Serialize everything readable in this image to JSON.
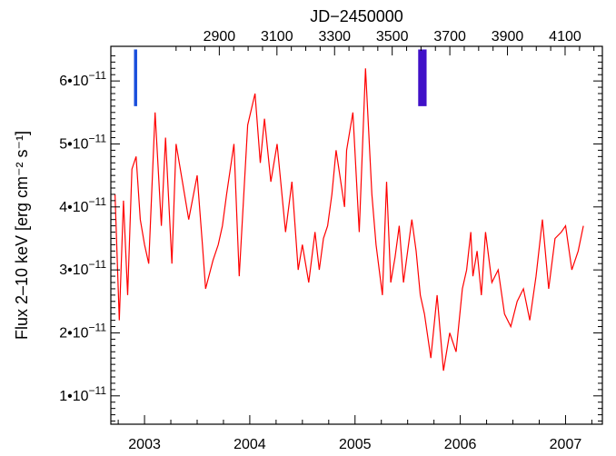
{
  "chart_data": {
    "type": "line",
    "title": "",
    "xlabel": "",
    "ylabel": "Flux 2–10 keV [erg cm⁻² s⁻¹]",
    "top_axis_label": "JD−2450000",
    "xlim": [
      2000.0,
      2008.0
    ],
    "ylim": [
      5.5e-12,
      6.55e-11
    ],
    "grid": false,
    "legend": "none",
    "x_ticks": [
      2003,
      2004,
      2005,
      2006,
      2007
    ],
    "x_tick_labels": [
      "2003",
      "2004",
      "2005",
      "2006",
      "2007"
    ],
    "top_ticks": [
      2900,
      3100,
      3300,
      3500,
      3700,
      3900,
      4100
    ],
    "top_tick_labels": [
      "2900",
      "3100",
      "3300",
      "3500",
      "3700",
      "3900",
      "4100"
    ],
    "y_ticks": [
      1e-11,
      2e-11,
      3e-11,
      4e-11,
      5e-11,
      6e-11
    ],
    "y_tick_labels": [
      {
        "mant": "1•",
        "base": "10",
        "exp": "−11"
      },
      {
        "mant": "2•",
        "base": "10",
        "exp": "−11"
      },
      {
        "mant": "3•",
        "base": "10",
        "exp": "−11"
      },
      {
        "mant": "4•",
        "base": "10",
        "exp": "−11"
      },
      {
        "mant": "5•",
        "base": "10",
        "exp": "−11"
      },
      {
        "mant": "6•",
        "base": "10",
        "exp": "−11"
      }
    ],
    "series": [
      {
        "color": "#ff0000",
        "x": [
          2002.72,
          2002.76,
          2002.8,
          2002.84,
          2002.88,
          2002.92,
          2002.96,
          2003.0,
          2003.04,
          2003.1,
          2003.16,
          2003.2,
          2003.26,
          2003.3,
          2003.36,
          2003.42,
          2003.5,
          2003.55,
          2003.58,
          2003.65,
          2003.7,
          2003.74,
          2003.78,
          2003.85,
          2003.9,
          2003.98,
          2004.05,
          2004.1,
          2004.14,
          2004.2,
          2004.26,
          2004.34,
          2004.4,
          2004.46,
          2004.5,
          2004.56,
          2004.62,
          2004.66,
          2004.7,
          2004.74,
          2004.78,
          2004.82,
          2004.9,
          2004.92,
          2004.98,
          2005.04,
          2005.1,
          2005.16,
          2005.2,
          2005.26,
          2005.3,
          2005.34,
          2005.38,
          2005.42,
          2005.46,
          2005.5,
          2005.54,
          2005.58,
          2005.62,
          2005.66,
          2005.72,
          2005.78,
          2005.84,
          2005.9,
          2005.96,
          2006.02,
          2006.06,
          2006.1,
          2006.12,
          2006.16,
          2006.2,
          2006.24,
          2006.3,
          2006.36,
          2006.42,
          2006.48,
          2006.54,
          2006.6,
          2006.66,
          2006.72,
          2006.78,
          2006.84,
          2006.9,
          2006.96,
          2007.0,
          2007.06,
          2007.12,
          2007.17
        ],
        "y": [
          4.2e-11,
          2.2e-11,
          4.1e-11,
          2.6e-11,
          4.6e-11,
          4.8e-11,
          3.8e-11,
          3.4e-11,
          3.1e-11,
          5.5e-11,
          3.7e-11,
          5.1e-11,
          3.1e-11,
          5e-11,
          4.4e-11,
          3.8e-11,
          4.5e-11,
          3.4e-11,
          2.7e-11,
          3.15e-11,
          3.4e-11,
          3.7e-11,
          4.2e-11,
          5e-11,
          2.9e-11,
          5.3e-11,
          5.8e-11,
          4.7e-11,
          5.4e-11,
          4.4e-11,
          5e-11,
          3.6e-11,
          4.4e-11,
          3e-11,
          3.4e-11,
          2.8e-11,
          3.6e-11,
          3e-11,
          3.5e-11,
          3.7e-11,
          4.2e-11,
          4.9e-11,
          4e-11,
          4.9e-11,
          5.5e-11,
          3.6e-11,
          6.2e-11,
          4.2e-11,
          3.4e-11,
          2.6e-11,
          4.4e-11,
          2.8e-11,
          3.2e-11,
          3.7e-11,
          2.8e-11,
          3.3e-11,
          3.8e-11,
          3.3e-11,
          2.6e-11,
          2.3e-11,
          1.6e-11,
          2.6e-11,
          1.4e-11,
          2e-11,
          1.7e-11,
          2.7e-11,
          3e-11,
          3.6e-11,
          2.9e-11,
          3.3e-11,
          2.6e-11,
          3.6e-11,
          2.8e-11,
          3e-11,
          2.3e-11,
          2.1e-11,
          2.5e-11,
          2.7e-11,
          2.2e-11,
          2.9e-11,
          3.8e-11,
          2.7e-11,
          3.5e-11,
          3.6e-11,
          3.7e-11,
          3e-11,
          3.3e-11,
          3.7e-11
        ]
      }
    ],
    "markers": [
      {
        "type": "bar",
        "x_start": 2002.9,
        "x_end": 2002.93,
        "y_bottom": 5.6e-11,
        "y_top": 6.5e-11,
        "color": "#1a4fdc"
      },
      {
        "type": "bar",
        "x_start": 2005.6,
        "x_end": 2005.68,
        "y_bottom": 5.6e-11,
        "y_top": 6.5e-11,
        "color": "#4010c8"
      }
    ]
  }
}
